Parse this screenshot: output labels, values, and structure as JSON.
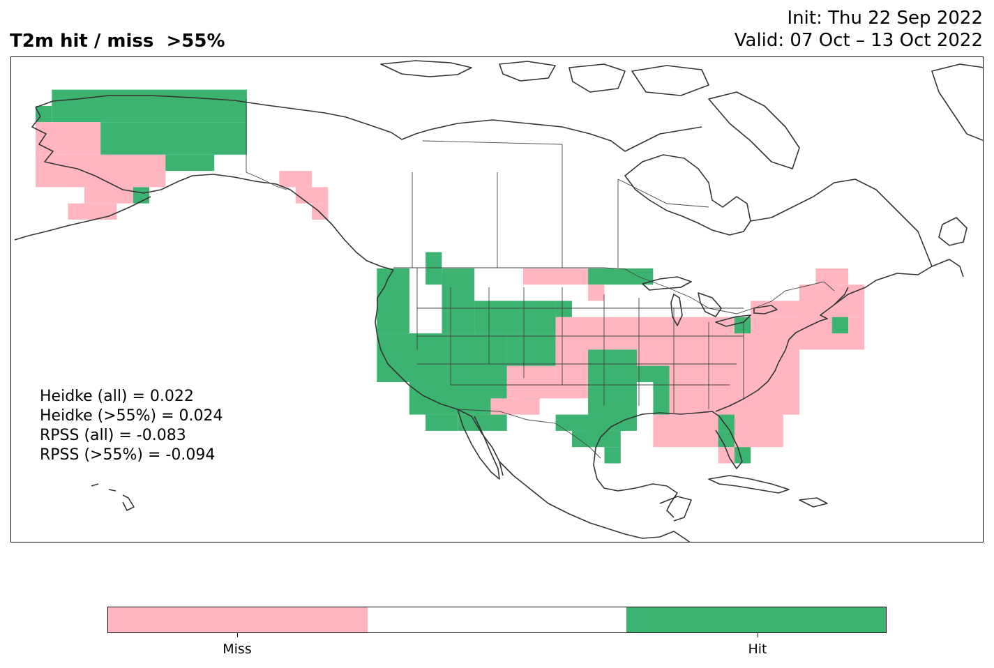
{
  "title": "T2m hit / miss  >55%",
  "init_text": "Init: Thu 22 Sep 2022",
  "valid_text": "Valid: 07 Oct – 13 Oct 2022",
  "stats": [
    "Heidke (all) = 0.022",
    "Heidke (>55%) = 0.024",
    "RPSS (all) = -0.083",
    "RPSS (>55%) = -0.094"
  ],
  "colors": {
    "miss": "#ffb6c1",
    "neutral": "#ffffff",
    "hit": "#3cb371",
    "coast": "#333333"
  },
  "colorbar": {
    "labels": [
      "Miss",
      "Hit"
    ]
  },
  "map": {
    "projection": "lat-lon (equirectangular)",
    "extent_lon": [
      -170,
      -50
    ],
    "extent_lat": [
      14,
      73
    ],
    "cell_deg": 2
  }
}
